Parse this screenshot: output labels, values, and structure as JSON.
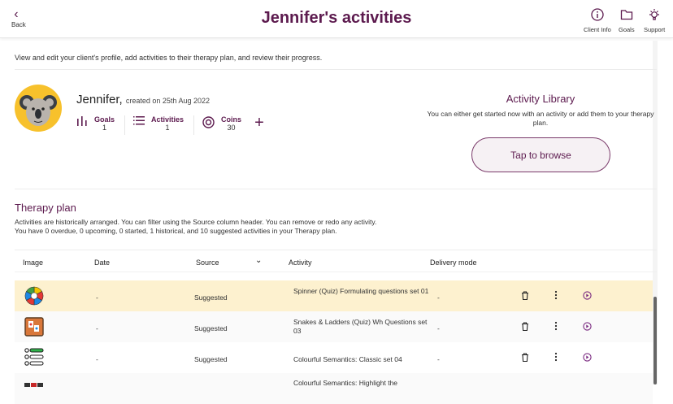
{
  "header": {
    "back_label": "Back",
    "title": "Jennifer's activities",
    "client_info_label": "Client Info",
    "goals_label": "Goals",
    "support_label": "Support"
  },
  "intro": "View and edit your client's profile, add activities to their therapy plan, and review their progress.",
  "profile": {
    "name": "Jennifer,",
    "created": "created on 25th Aug 2022",
    "avatar": "koala",
    "stats": [
      {
        "label": "Goals",
        "value": "1",
        "icon": "bar-chart-icon"
      },
      {
        "label": "Activities",
        "value": "1",
        "icon": "list-icon"
      },
      {
        "label": "Coins",
        "value": "30",
        "icon": "coin-icon"
      }
    ]
  },
  "library": {
    "title": "Activity Library",
    "text": "You can either get started now with an activity or add them to your therapy plan.",
    "button": "Tap to browse"
  },
  "therapy": {
    "title": "Therapy plan",
    "desc1": "Activities are historically arranged. You can filter using the Source column header. You can remove or redo any activity.",
    "desc2": "You have 0 overdue, 0 upcoming, 0 started, 1 historical, and 10 suggested activities in your Therapy plan."
  },
  "table": {
    "columns": [
      "Image",
      "Date",
      "Source",
      "Activity",
      "Delivery mode"
    ],
    "rows": [
      {
        "date": "-",
        "source": "Suggested",
        "activity": "Spinner (Quiz) Formulating questions set 01",
        "delivery": "-",
        "image": "spinner",
        "highlight": true
      },
      {
        "date": "-",
        "source": "Suggested",
        "activity": "Snakes & Ladders (Quiz) Wh Questions set 03",
        "delivery": "-",
        "image": "snakes-ladders"
      },
      {
        "date": "-",
        "source": "Suggested",
        "activity": "Colourful Semantics: Classic set 04",
        "delivery": "-",
        "image": "colourful-semantics"
      },
      {
        "date": "",
        "source": "",
        "activity": "Colourful Semantics: Highlight the",
        "delivery": "",
        "image": "colourful-semantics-highlight"
      }
    ]
  },
  "colors": {
    "brand": "#5c1a4e",
    "highlight": "#fdf1cf",
    "avatar_bg": "#f7c12c"
  }
}
